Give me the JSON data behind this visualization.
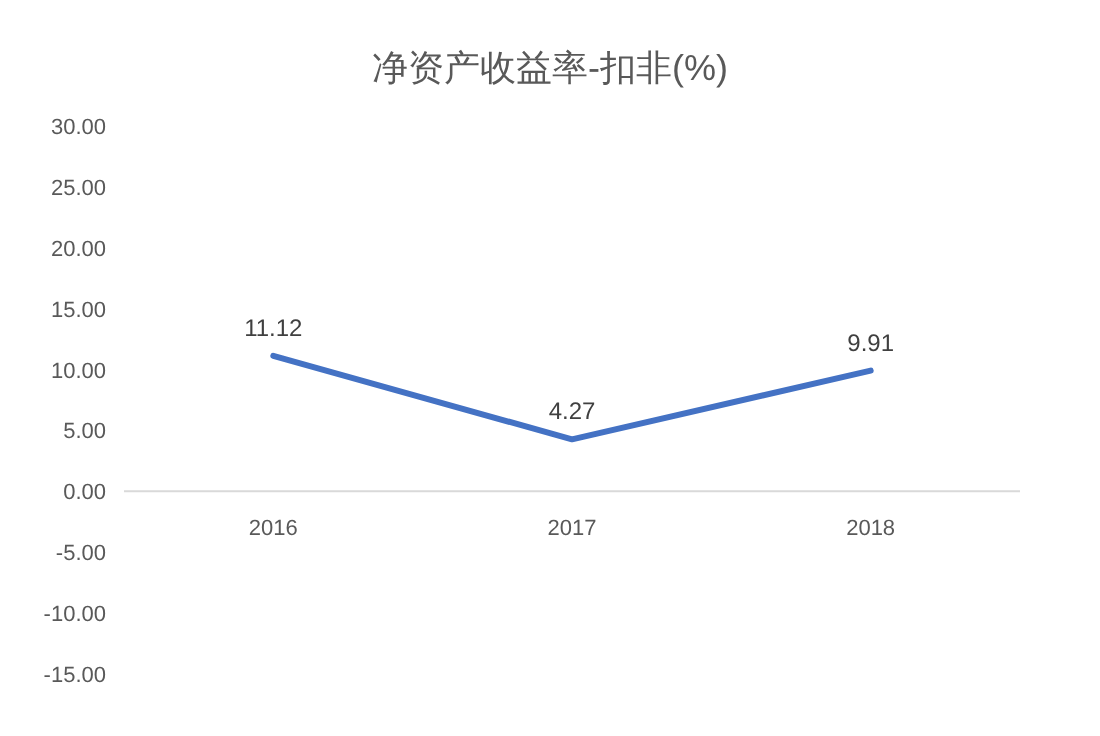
{
  "chart_data": {
    "type": "line",
    "title": "净资产收益率-扣非(%)",
    "categories": [
      "2016",
      "2017",
      "2018"
    ],
    "series": [
      {
        "color": "#4472c4",
        "values": [
          11.12,
          4.27,
          9.91
        ]
      }
    ],
    "data_labels": true,
    "ylim": [
      -15,
      30
    ],
    "yticks": [
      {
        "value": 30,
        "label": "30.00"
      },
      {
        "value": 25,
        "label": "25.00"
      },
      {
        "value": 20,
        "label": "20.00"
      },
      {
        "value": 15,
        "label": "15.00"
      },
      {
        "value": 10,
        "label": "10.00"
      },
      {
        "value": 5,
        "label": "5.00"
      },
      {
        "value": 0,
        "label": "0.00"
      },
      {
        "value": -5,
        "label": "-5.00"
      },
      {
        "value": -10,
        "label": "-10.00"
      },
      {
        "value": -15,
        "label": "-15.00"
      }
    ],
    "grid": false,
    "marker": "none",
    "line_style": "solid"
  }
}
